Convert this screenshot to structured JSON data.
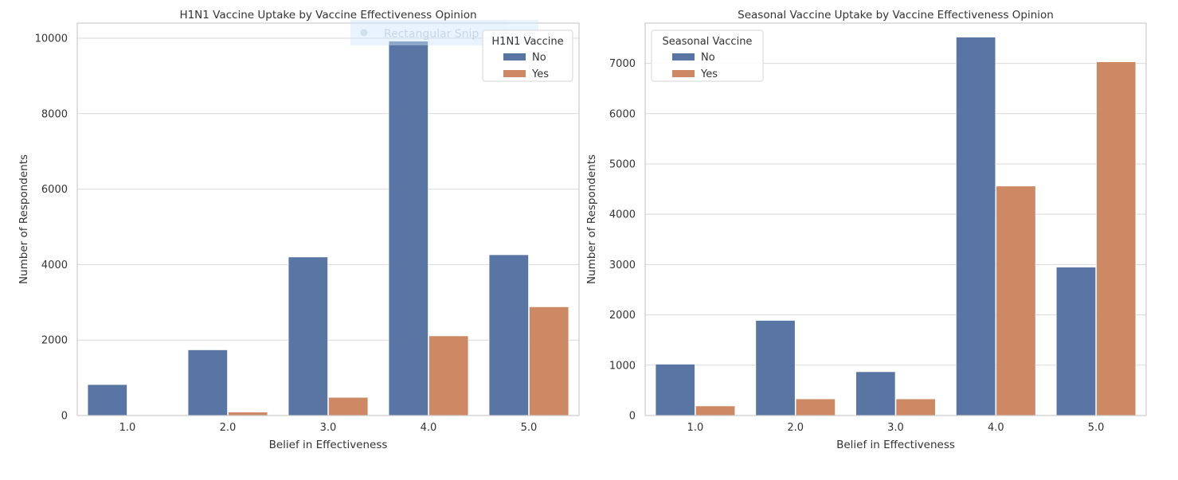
{
  "colors": {
    "no": "#5975a4",
    "yes": "#cc8963",
    "grid": "#d9d9d9",
    "frame": "#cccccc",
    "overlay": "#cfe6fb"
  },
  "overlay": {
    "label": "Rectangular Snip",
    "icon": "snip-record-icon"
  },
  "chart_data": [
    {
      "type": "bar",
      "title": "H1N1 Vaccine Uptake by Vaccine Effectiveness Opinion",
      "xlabel": "Belief in Effectiveness",
      "ylabel": "Number of Respondents",
      "categories": [
        "1.0",
        "2.0",
        "3.0",
        "4.0",
        "5.0"
      ],
      "ylim": [
        0,
        10400
      ],
      "yticks": [
        0,
        2000,
        4000,
        6000,
        8000,
        10000
      ],
      "grid": true,
      "legend": {
        "title": "H1N1 Vaccine",
        "placement": "top-right"
      },
      "series": [
        {
          "name": "No",
          "values": [
            820,
            1740,
            4200,
            9920,
            4260
          ]
        },
        {
          "name": "Yes",
          "values": [
            15,
            90,
            480,
            2110,
            2880
          ]
        }
      ]
    },
    {
      "type": "bar",
      "title": "Seasonal Vaccine Uptake by Vaccine Effectiveness Opinion",
      "xlabel": "Belief in Effectiveness",
      "ylabel": "Number of Respondents",
      "categories": [
        "1.0",
        "2.0",
        "3.0",
        "4.0",
        "5.0"
      ],
      "ylim": [
        0,
        7800
      ],
      "yticks": [
        0,
        1000,
        2000,
        3000,
        4000,
        5000,
        6000,
        7000
      ],
      "grid": true,
      "legend": {
        "title": "Seasonal Vaccine",
        "placement": "top-left"
      },
      "series": [
        {
          "name": "No",
          "values": [
            1020,
            1890,
            870,
            7520,
            2950
          ]
        },
        {
          "name": "Yes",
          "values": [
            190,
            330,
            330,
            4560,
            7030
          ]
        }
      ]
    }
  ]
}
